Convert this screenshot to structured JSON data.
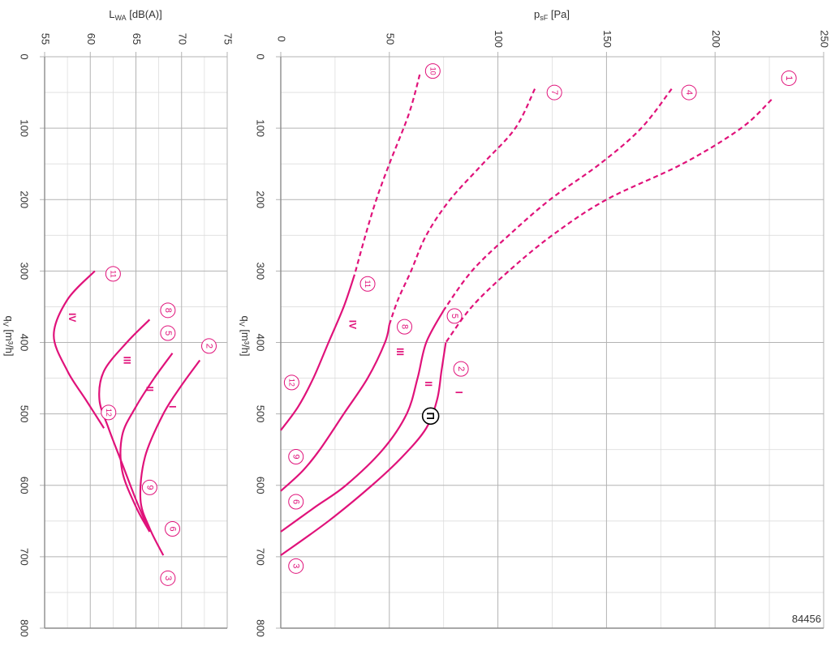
{
  "figure_id": "84456",
  "colors": {
    "curve": "#e0127a",
    "grid": "#b3b3b3",
    "axis": "#8c8c8c",
    "text": "#333333",
    "marker": "#000000"
  },
  "chart_data": [
    {
      "type": "line",
      "orientation": "rotated-90-clockwise",
      "xlabel": "q",
      "xlabel_sub": "V",
      "xlabel_unit": "[m³/h]",
      "ylabel": "L",
      "ylabel_sub": "WA",
      "ylabel_unit": "[dB(A)]",
      "xlim": [
        0,
        800
      ],
      "ylim": [
        55,
        75
      ],
      "x_ticks": [
        "0",
        "100",
        "200",
        "300",
        "400",
        "500",
        "600",
        "700",
        "800"
      ],
      "y_ticks": [
        "55",
        "60",
        "65",
        "70",
        "75"
      ],
      "grid": true,
      "series": [
        {
          "name": "IV",
          "style": "solid",
          "x": [
            300,
            340,
            390,
            440,
            480,
            520
          ],
          "y": [
            60.5,
            57.5,
            56,
            57.5,
            59.5,
            61.5
          ]
        },
        {
          "name": "III",
          "style": "solid",
          "x": [
            368,
            400,
            440,
            480,
            520,
            570,
            620,
            665
          ],
          "y": [
            66.5,
            64,
            61.5,
            61,
            62,
            63.5,
            65,
            66.5
          ]
        },
        {
          "name": "II",
          "style": "solid",
          "x": [
            415,
            450,
            490,
            530,
            580,
            630,
            665
          ],
          "y": [
            69,
            67,
            65,
            63.5,
            63.5,
            65,
            66.5
          ]
        },
        {
          "name": "I",
          "style": "solid",
          "x": [
            425,
            460,
            500,
            560,
            620,
            660,
            698
          ],
          "y": [
            72,
            70,
            68,
            66,
            65.5,
            66.5,
            68
          ]
        }
      ],
      "point_labels": [
        {
          "label": "2",
          "x": 405,
          "y": 73
        },
        {
          "label": "3",
          "x": 730,
          "y": 68.5
        },
        {
          "label": "5",
          "x": 387,
          "y": 68.5
        },
        {
          "label": "6",
          "x": 661,
          "y": 69
        },
        {
          "label": "8",
          "x": 355,
          "y": 68.5
        },
        {
          "label": "9",
          "x": 603,
          "y": 66.5
        },
        {
          "label": "11",
          "x": 304,
          "y": 62.5
        },
        {
          "label": "12",
          "x": 498,
          "y": 62
        }
      ],
      "curve_labels": [
        {
          "label": "IV",
          "x": 365,
          "y": 58
        },
        {
          "label": "III",
          "x": 425,
          "y": 64
        },
        {
          "label": "II",
          "x": 465,
          "y": 66.5
        },
        {
          "label": "I",
          "x": 490,
          "y": 69
        }
      ]
    },
    {
      "type": "line",
      "orientation": "rotated-90-clockwise",
      "xlabel": "q",
      "xlabel_sub": "V",
      "xlabel_unit": "[m³/h]",
      "ylabel": "p",
      "ylabel_sub": "sF",
      "ylabel_unit": "[Pa]",
      "xlim": [
        0,
        800
      ],
      "ylim": [
        0,
        250
      ],
      "x_ticks": [
        "0",
        "100",
        "200",
        "300",
        "400",
        "500",
        "600",
        "700",
        "800"
      ],
      "y_ticks": [
        "0",
        "50",
        "100",
        "150",
        "200",
        "250"
      ],
      "grid": true,
      "series": [
        {
          "name": "I",
          "style": "solid",
          "x": [
            400,
            440,
            480,
            520,
            560,
            600,
            650,
            698
          ],
          "y": [
            76,
            74,
            72,
            67,
            56,
            42,
            22,
            0
          ]
        },
        {
          "name": "I",
          "style": "dashed",
          "x": [
            60,
            100,
            150,
            200,
            250,
            300,
            350,
            400
          ],
          "y": [
            226,
            212,
            185,
            150,
            125,
            105,
            88,
            76
          ]
        },
        {
          "name": "II",
          "style": "solid",
          "x": [
            355,
            400,
            450,
            500,
            550,
            600,
            630,
            665
          ],
          "y": [
            75,
            67,
            63,
            58,
            47,
            30,
            16,
            0
          ]
        },
        {
          "name": "II",
          "style": "dashed",
          "x": [
            45,
            100,
            150,
            200,
            250,
            300,
            355
          ],
          "y": [
            180,
            166,
            147,
            124,
            105,
            88,
            75
          ]
        },
        {
          "name": "III",
          "style": "solid",
          "x": [
            375,
            400,
            450,
            500,
            550,
            580,
            608
          ],
          "y": [
            50,
            48,
            40,
            29,
            18,
            10,
            0
          ]
        },
        {
          "name": "III",
          "style": "dashed",
          "x": [
            45,
            100,
            150,
            200,
            250,
            300,
            340,
            375
          ],
          "y": [
            117,
            108,
            93,
            78,
            67,
            60,
            54,
            50
          ]
        },
        {
          "name": "IV",
          "style": "solid",
          "x": [
            305,
            350,
            400,
            450,
            490,
            523
          ],
          "y": [
            34,
            29,
            22,
            15,
            8,
            0
          ]
        },
        {
          "name": "IV",
          "style": "dashed",
          "x": [
            25,
            80,
            150,
            200,
            250,
            305
          ],
          "y": [
            64,
            59,
            50,
            44,
            39,
            34
          ]
        }
      ],
      "point_labels": [
        {
          "label": "1",
          "x": 30,
          "y": 234
        },
        {
          "label": "2",
          "x": 437,
          "y": 83
        },
        {
          "label": "3",
          "x": 713,
          "y": 7
        },
        {
          "label": "4",
          "x": 50,
          "y": 188
        },
        {
          "label": "5",
          "x": 363,
          "y": 80
        },
        {
          "label": "6",
          "x": 623,
          "y": 7
        },
        {
          "label": "7",
          "x": 50,
          "y": 126
        },
        {
          "label": "8",
          "x": 378,
          "y": 57
        },
        {
          "label": "9",
          "x": 560,
          "y": 7
        },
        {
          "label": "10",
          "x": 20,
          "y": 70
        },
        {
          "label": "11",
          "x": 318,
          "y": 40
        },
        {
          "label": "12",
          "x": 456,
          "y": 5
        }
      ],
      "marker": {
        "symbol": "Π",
        "x": 503,
        "y": 69
      },
      "curve_labels": [
        {
          "label": "IV",
          "x": 375,
          "y": 33
        },
        {
          "label": "III",
          "x": 413,
          "y": 55
        },
        {
          "label": "II",
          "x": 458,
          "y": 68
        },
        {
          "label": "I",
          "x": 470,
          "y": 82
        }
      ]
    }
  ]
}
